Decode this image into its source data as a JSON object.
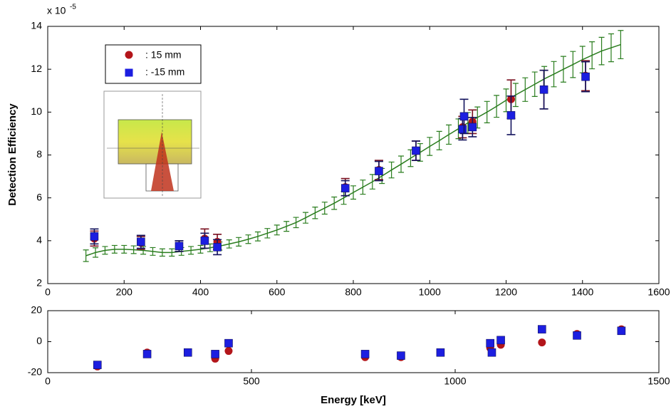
{
  "chart_data": [
    {
      "type": "scatter",
      "ylabel": "Detection Efficiency",
      "y_multiplier": "x 10",
      "y_multiplier_exponent": "-5",
      "xlim": [
        0,
        1600
      ],
      "xticks": [
        0,
        200,
        400,
        600,
        800,
        1000,
        1200,
        1400,
        1600
      ],
      "ylim": [
        2,
        14
      ],
      "yticks": [
        2,
        4,
        6,
        8,
        10,
        12,
        14
      ],
      "legend": "upper left",
      "series": [
        {
          "style": "errorbar-line",
          "color": "#2a7d1e",
          "x": [
            100,
            125,
            150,
            175,
            200,
            225,
            250,
            275,
            300,
            325,
            350,
            375,
            400,
            425,
            450,
            475,
            500,
            525,
            550,
            575,
            600,
            625,
            650,
            675,
            700,
            725,
            750,
            775,
            800,
            825,
            850,
            875,
            900,
            925,
            950,
            975,
            1000,
            1025,
            1050,
            1075,
            1100,
            1125,
            1150,
            1175,
            1200,
            1225,
            1250,
            1275,
            1300,
            1325,
            1350,
            1375,
            1400,
            1425,
            1450,
            1475,
            1500
          ],
          "values": [
            3.3,
            3.45,
            3.55,
            3.6,
            3.6,
            3.58,
            3.55,
            3.5,
            3.45,
            3.45,
            3.5,
            3.55,
            3.6,
            3.67,
            3.75,
            3.85,
            3.95,
            4.07,
            4.2,
            4.35,
            4.5,
            4.67,
            4.85,
            5.07,
            5.3,
            5.52,
            5.75,
            6.0,
            6.25,
            6.5,
            6.75,
            7.02,
            7.3,
            7.57,
            7.85,
            8.12,
            8.4,
            8.67,
            8.95,
            9.22,
            9.5,
            9.75,
            10.0,
            10.27,
            10.55,
            10.8,
            11.05,
            11.3,
            11.55,
            11.77,
            12.0,
            12.22,
            12.45,
            12.65,
            12.85,
            13.0,
            13.15
          ],
          "errors": [
            0.27,
            0.22,
            0.18,
            0.18,
            0.18,
            0.18,
            0.18,
            0.18,
            0.17,
            0.17,
            0.18,
            0.18,
            0.18,
            0.18,
            0.19,
            0.19,
            0.2,
            0.2,
            0.21,
            0.22,
            0.23,
            0.23,
            0.24,
            0.25,
            0.27,
            0.28,
            0.29,
            0.3,
            0.31,
            0.33,
            0.34,
            0.35,
            0.37,
            0.38,
            0.39,
            0.41,
            0.42,
            0.43,
            0.45,
            0.46,
            0.48,
            0.49,
            0.5,
            0.51,
            0.53,
            0.54,
            0.55,
            0.57,
            0.58,
            0.59,
            0.6,
            0.61,
            0.62,
            0.63,
            0.64,
            0.65,
            0.66
          ]
        },
        {
          "name": ": 15 mm",
          "marker": "circle",
          "color": "#b3151a",
          "error_color": "#7a1020",
          "x": [
            122,
            244,
            344,
            411,
            444,
            779,
            867,
            964,
            1086,
            1090,
            1112,
            1213,
            1299,
            1408
          ],
          "values": [
            4.1,
            3.9,
            3.75,
            4.1,
            3.95,
            6.5,
            7.3,
            8.2,
            9.3,
            null,
            9.55,
            10.6,
            11.05,
            11.7
          ],
          "errors": [
            0.35,
            0.3,
            0.25,
            0.45,
            0.35,
            0.4,
            0.45,
            0.45,
            0.5,
            null,
            0.55,
            0.9,
            0.9,
            0.7
          ]
        },
        {
          "name": ": -15 mm",
          "marker": "square",
          "color": "#1c1ee0",
          "error_color": "#14145e",
          "x": [
            122,
            244,
            344,
            411,
            444,
            779,
            867,
            964,
            1086,
            1090,
            1112,
            1213,
            1299,
            1408
          ],
          "values": [
            4.2,
            3.95,
            3.75,
            4.0,
            3.7,
            6.45,
            7.25,
            8.2,
            9.2,
            9.8,
            9.3,
            9.85,
            11.05,
            11.65
          ],
          "errors": [
            0.35,
            0.3,
            0.25,
            0.35,
            0.35,
            0.35,
            0.45,
            0.45,
            0.5,
            0.8,
            0.45,
            0.9,
            0.9,
            0.7
          ]
        }
      ]
    },
    {
      "type": "scatter",
      "xlabel": "Energy [keV]",
      "xlim": [
        0,
        1500
      ],
      "xticks": [
        0,
        500,
        1000,
        1500
      ],
      "ylim": [
        -20,
        20
      ],
      "yticks": [
        -20,
        0,
        20
      ],
      "series": [
        {
          "marker": "circle",
          "color": "#b3151a",
          "x": [
            122,
            244,
            344,
            411,
            444,
            779,
            867,
            964,
            1086,
            1090,
            1112,
            1213,
            1299,
            1408
          ],
          "values": [
            -16,
            -7,
            -7,
            -11,
            -6,
            -10,
            -10,
            -7,
            -4,
            null,
            -2,
            -0.5,
            5,
            8
          ]
        },
        {
          "marker": "square",
          "color": "#1c1ee0",
          "x": [
            122,
            244,
            344,
            411,
            444,
            779,
            867,
            964,
            1086,
            1090,
            1112,
            1213,
            1299,
            1408
          ],
          "values": [
            -15,
            -8,
            -7,
            -8,
            -1,
            -8,
            -9,
            -7,
            -1,
            -7,
            1,
            8,
            4,
            7
          ]
        }
      ]
    }
  ]
}
